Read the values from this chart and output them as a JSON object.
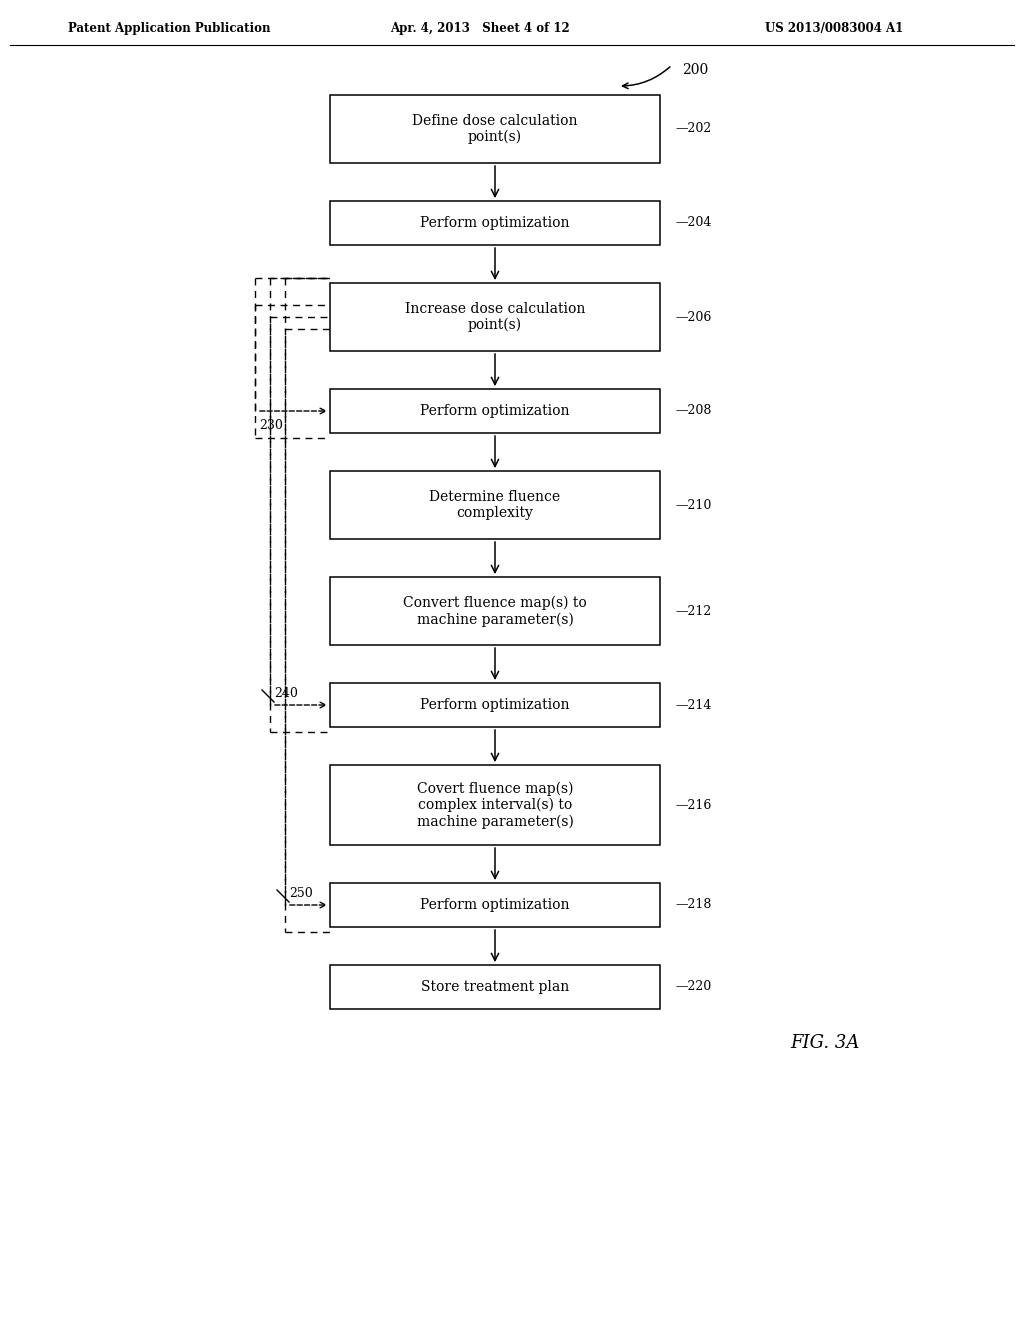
{
  "header_left": "Patent Application Publication",
  "header_center": "Apr. 4, 2013   Sheet 4 of 12",
  "header_right": "US 2013/0083004 A1",
  "figure_label": "FIG. 3A",
  "diagram_label": "200",
  "boxes": [
    {
      "id": "202",
      "label": "Define dose calculation\npoint(s)"
    },
    {
      "id": "204",
      "label": "Perform optimization"
    },
    {
      "id": "206",
      "label": "Increase dose calculation\npoint(s)"
    },
    {
      "id": "208",
      "label": "Perform optimization"
    },
    {
      "id": "210",
      "label": "Determine fluence\ncomplexity"
    },
    {
      "id": "212",
      "label": "Convert fluence map(s) to\nmachine parameter(s)"
    },
    {
      "id": "214",
      "label": "Perform optimization"
    },
    {
      "id": "216",
      "label": "Covert fluence map(s)\ncomplex interval(s) to\nmachine parameter(s)"
    },
    {
      "id": "218",
      "label": "Perform optimization"
    },
    {
      "id": "220",
      "label": "Store treatment plan"
    }
  ],
  "box_heights": {
    "202": 0.68,
    "204": 0.44,
    "206": 0.68,
    "208": 0.44,
    "210": 0.68,
    "212": 0.68,
    "214": 0.44,
    "216": 0.8,
    "218": 0.44,
    "220": 0.44
  },
  "bg_color": "#ffffff",
  "box_color": "#ffffff",
  "box_edge_color": "#000000",
  "text_color": "#000000",
  "arrow_color": "#000000"
}
